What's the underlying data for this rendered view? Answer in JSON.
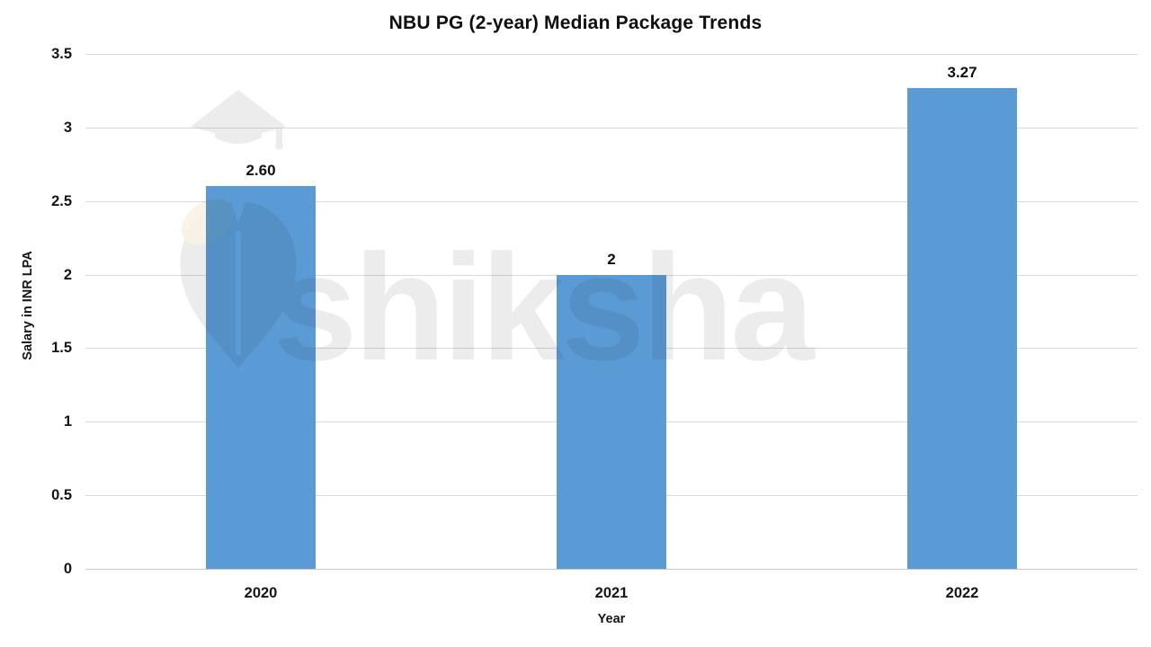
{
  "title": "NBU PG (2-year) Median Package Trends",
  "watermark": {
    "brand": "shiksha"
  },
  "chart_data": {
    "type": "bar",
    "title": "NBU PG (2-year) Median Package Trends",
    "categories": [
      "2020",
      "2021",
      "2022"
    ],
    "values": [
      2.6,
      2,
      3.27
    ],
    "value_labels": [
      "2.60",
      "2",
      "3.27"
    ],
    "xlabel": "Year",
    "ylabel": "Salary in INR LPA",
    "ylim": [
      0,
      3.5
    ],
    "ytick_step": 0.5,
    "yticks": [
      "0",
      "0.5",
      "1",
      "1.5",
      "2",
      "2.5",
      "3",
      "3.5"
    ],
    "grid": true,
    "legend": "none",
    "bar_color": "#5B9BD5",
    "gridline_color": "#d9d9d9",
    "text_color": "#111111",
    "background_color": "#ffffff",
    "watermark_color": "#ececec"
  }
}
